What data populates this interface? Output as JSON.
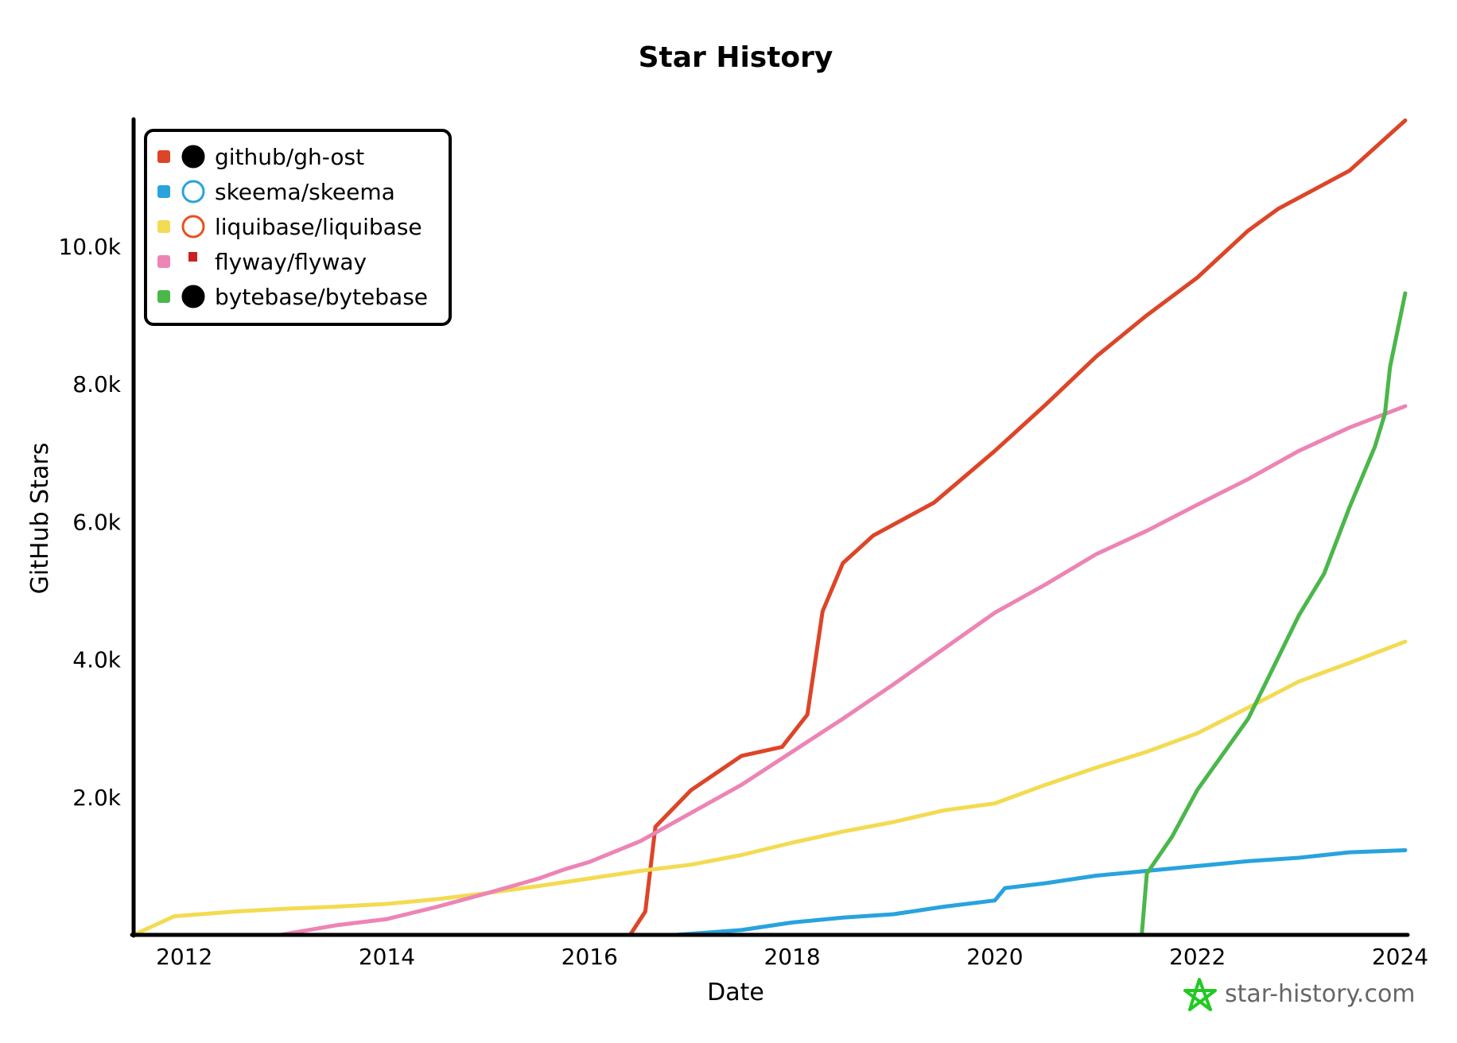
{
  "chart_data": {
    "type": "line",
    "title": "Star History",
    "xlabel": "Date",
    "ylabel": "GitHub Stars",
    "xlim": [
      2011.5,
      2024.1
    ],
    "ylim": [
      0,
      12000
    ],
    "x_ticks": [
      "2012",
      "2014",
      "2016",
      "2018",
      "2020",
      "2022",
      "2024"
    ],
    "y_ticks": [
      "2.0k",
      "4.0k",
      "6.0k",
      "8.0k",
      "10.0k"
    ],
    "legend_position": "top-left",
    "grid": false,
    "series": [
      {
        "name": "github/gh-ost",
        "color": "#dd4528",
        "icon": "github-icon",
        "x": [
          2016.4,
          2016.55,
          2016.65,
          2017,
          2017.5,
          2017.9,
          2018.15,
          2018.3,
          2018.5,
          2018.8,
          2019.4,
          2020,
          2020.5,
          2021,
          2021.5,
          2022,
          2022.5,
          2022.8,
          2023.5,
          2024.05
        ],
        "y": [
          0,
          340,
          1570,
          2100,
          2600,
          2730,
          3200,
          4700,
          5400,
          5800,
          6280,
          7030,
          7700,
          8400,
          9000,
          9550,
          10230,
          10550,
          11100,
          11830
        ]
      },
      {
        "name": "skeema/skeema",
        "color": "#28a3dd",
        "icon": "skeema-icon",
        "x": [
          2016.85,
          2017.5,
          2018,
          2018.5,
          2019,
          2019.5,
          2020,
          2020.1,
          2020.5,
          2021,
          2021.5,
          2022,
          2022.5,
          2023,
          2023.5,
          2024.05
        ],
        "y": [
          0,
          70,
          180,
          250,
          300,
          410,
          500,
          680,
          750,
          860,
          930,
          1000,
          1070,
          1120,
          1200,
          1230
        ]
      },
      {
        "name": "liquibase/liquibase",
        "color": "#f3db52",
        "icon": "liquibase-icon",
        "x": [
          2011.5,
          2011.9,
          2012.5,
          2013,
          2013.5,
          2014,
          2014.5,
          2015,
          2015.5,
          2016,
          2016.5,
          2017,
          2017.5,
          2018,
          2018.5,
          2019,
          2019.5,
          2020,
          2020.5,
          2021,
          2021.5,
          2022,
          2022.5,
          2023,
          2023.5,
          2024.05
        ],
        "y": [
          0,
          270,
          340,
          380,
          410,
          450,
          520,
          610,
          710,
          820,
          930,
          1020,
          1160,
          1340,
          1500,
          1640,
          1810,
          1910,
          2180,
          2430,
          2660,
          2930,
          3300,
          3680,
          3950,
          4260
        ]
      },
      {
        "name": "flyway/flyway",
        "color": "#ed84b5",
        "icon": "flyway-icon",
        "x": [
          2012.95,
          2013.5,
          2014,
          2014.5,
          2015,
          2015.5,
          2015.75,
          2016,
          2016.5,
          2017,
          2017.5,
          2018,
          2018.5,
          2019,
          2019.5,
          2020,
          2020.5,
          2021,
          2021.5,
          2022,
          2022.5,
          2023,
          2023.5,
          2024.05
        ],
        "y": [
          0,
          140,
          230,
          410,
          610,
          820,
          950,
          1060,
          1360,
          1770,
          2180,
          2660,
          3140,
          3640,
          4160,
          4680,
          5090,
          5530,
          5870,
          6250,
          6620,
          7030,
          7370,
          7680
        ]
      },
      {
        "name": "bytebase/bytebase",
        "color": "#4ab74a",
        "icon": "bytebase-icon",
        "x": [
          2021.45,
          2021.5,
          2021.75,
          2022,
          2022.5,
          2022.75,
          2023,
          2023.25,
          2023.5,
          2023.75,
          2023.85,
          2023.9,
          2024.05
        ],
        "y": [
          0,
          890,
          1430,
          2110,
          3140,
          3890,
          4640,
          5250,
          6210,
          7090,
          7570,
          8250,
          9320
        ]
      }
    ]
  },
  "watermark": "star-history.com",
  "watermark_color": "#22c922"
}
